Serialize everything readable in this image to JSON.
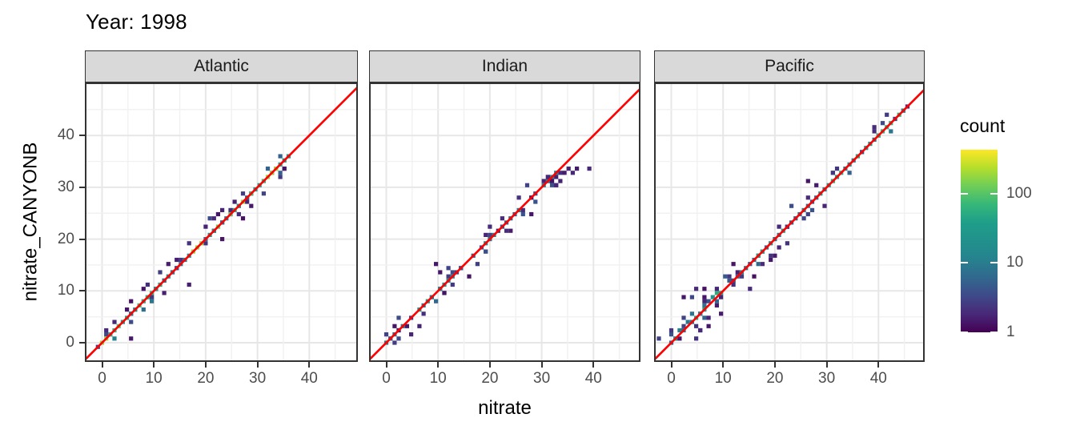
{
  "chart": {
    "title": "Year: 1998",
    "xlabel": "nitrate",
    "ylabel": "nitrate_CANYONB"
  },
  "style": {
    "strip_fill": "#D9D9D9",
    "panel_border": "#333333",
    "grid_major": "#E7E7E7",
    "grid_minor": "#F1F1F1",
    "tick_color": "#333333",
    "tick_label_color": "#4D4D4D",
    "reference_line_color": "#FF0000"
  },
  "chart_data": {
    "type": "heatmap",
    "subtype": "bin2d_faceted_scatter",
    "title": "Year: 1998",
    "xlabel": "nitrate",
    "ylabel": "nitrate_CANYONB",
    "facet_labels": [
      "Atlantic",
      "Indian",
      "Pacific"
    ],
    "x_ticks": [
      0,
      10,
      20,
      30,
      40
    ],
    "y_ticks": [
      0,
      10,
      20,
      30,
      40
    ],
    "x_range": [
      -3.3,
      49.4
    ],
    "y_range": [
      -3.7,
      50.2
    ],
    "grid_lines_every": 5,
    "bin_width": 0.8,
    "reference_line": {
      "type": "identity",
      "slope": 1,
      "intercept": 0,
      "color": "#FF0000"
    },
    "legend": {
      "title": "count",
      "scale": "log10",
      "ticks": [
        100,
        10,
        1
      ],
      "max_count": 430,
      "colormap": "viridis"
    },
    "viridis_stops": [
      "#440154",
      "#482878",
      "#3E4A89",
      "#31688E",
      "#26828E",
      "#21918C",
      "#1F9E89",
      "#35B779",
      "#6DCD59",
      "#B4DE2C",
      "#FDE725"
    ],
    "facets": [
      {
        "label": "Atlantic",
        "data_extent": [
          0,
          36
        ],
        "description": "dense diagonal band hugging y=x from 0 to 36; teal-green core with yellow hot spots near 0, 19, 27 and 33; purple fringe",
        "gen": {
          "seed": 11,
          "max": 36,
          "base": 0.52,
          "amp": 0.5,
          "skip_p": 0.02,
          "band2_p": 0.55,
          "neighbor_p": 0.5,
          "low_end": 0,
          "low_boost": false,
          "hot": [
            0.4,
            18.5,
            27.5,
            33.0
          ],
          "hot_level": 0.86
        },
        "outliers": [
          [
            16.6,
            10.8
          ],
          [
            26.9,
            24.0
          ],
          [
            5.3,
            0.8
          ],
          [
            2.2,
            3.9
          ],
          [
            12.3,
            9.5
          ],
          [
            21.5,
            24.3
          ],
          [
            22.3,
            25.0
          ],
          [
            23.1,
            25.8
          ],
          [
            8.0,
            10.2
          ],
          [
            4.6,
            6.3
          ],
          [
            28.7,
            26.2
          ],
          [
            13.0,
            15.4
          ]
        ]
      },
      {
        "label": "Indian",
        "data_extent": [
          0,
          39
        ],
        "description": "sparser diagonal band from 0 to 34, mostly purple-blue; flattened cluster below y=x at top, y ~31-34 while x reaches 39",
        "gen": {
          "seed": 23,
          "max": 34,
          "base": 0.3,
          "amp": 0.42,
          "skip_p": 0.1,
          "band2_p": 0.5,
          "neighbor_p": 0.55,
          "low_end": 0,
          "low_boost": false,
          "hot": [],
          "hot_level": 0
        },
        "outliers": [
          [
            9.8,
            15.4
          ],
          [
            10.3,
            13.9
          ],
          [
            4.6,
            1.7
          ],
          [
            16.2,
            12.9
          ],
          [
            6.2,
            3.5
          ],
          [
            30.6,
            31.4
          ],
          [
            31.4,
            32.2
          ],
          [
            32.2,
            31.4
          ],
          [
            33.0,
            32.2
          ],
          [
            33.8,
            33.0
          ],
          [
            34.6,
            33.0
          ],
          [
            35.4,
            33.8
          ],
          [
            36.2,
            33.0
          ],
          [
            37.0,
            33.8
          ],
          [
            39.0,
            33.8
          ],
          [
            33.0,
            30.6
          ],
          [
            27.7,
            24.6
          ],
          [
            25.4,
            27.7
          ]
        ]
      },
      {
        "label": "Pacific",
        "data_extent": [
          0,
          45.6
        ],
        "description": "diagonal band from 0 to 45.5 reaching panel top-right; wide purple scatter at low values (<12); teal-green core at high end",
        "gen": {
          "seed": 37,
          "max": 45.6,
          "base": 0.4,
          "amp": 0.45,
          "skip_p": 0.03,
          "band2_p": 0.6,
          "neighbor_p": 0.45,
          "low_end": 12,
          "low_boost": true,
          "hot": [
            40.5,
            43.5
          ],
          "hot_level": 0.68
        },
        "outliers": [
          [
            2.0,
            9.2
          ],
          [
            26.6,
            30.8
          ],
          [
            7.6,
            3.4
          ],
          [
            9.7,
            5.3
          ],
          [
            4.4,
            0.9
          ],
          [
            14.9,
            10.6
          ],
          [
            11.8,
            15.0
          ],
          [
            20.3,
            16.6
          ],
          [
            6.0,
            8.4
          ],
          [
            8.4,
            10.0
          ],
          [
            5.2,
            2.2
          ],
          [
            9.2,
            7.0
          ],
          [
            16.4,
            12.6
          ]
        ]
      }
    ]
  }
}
